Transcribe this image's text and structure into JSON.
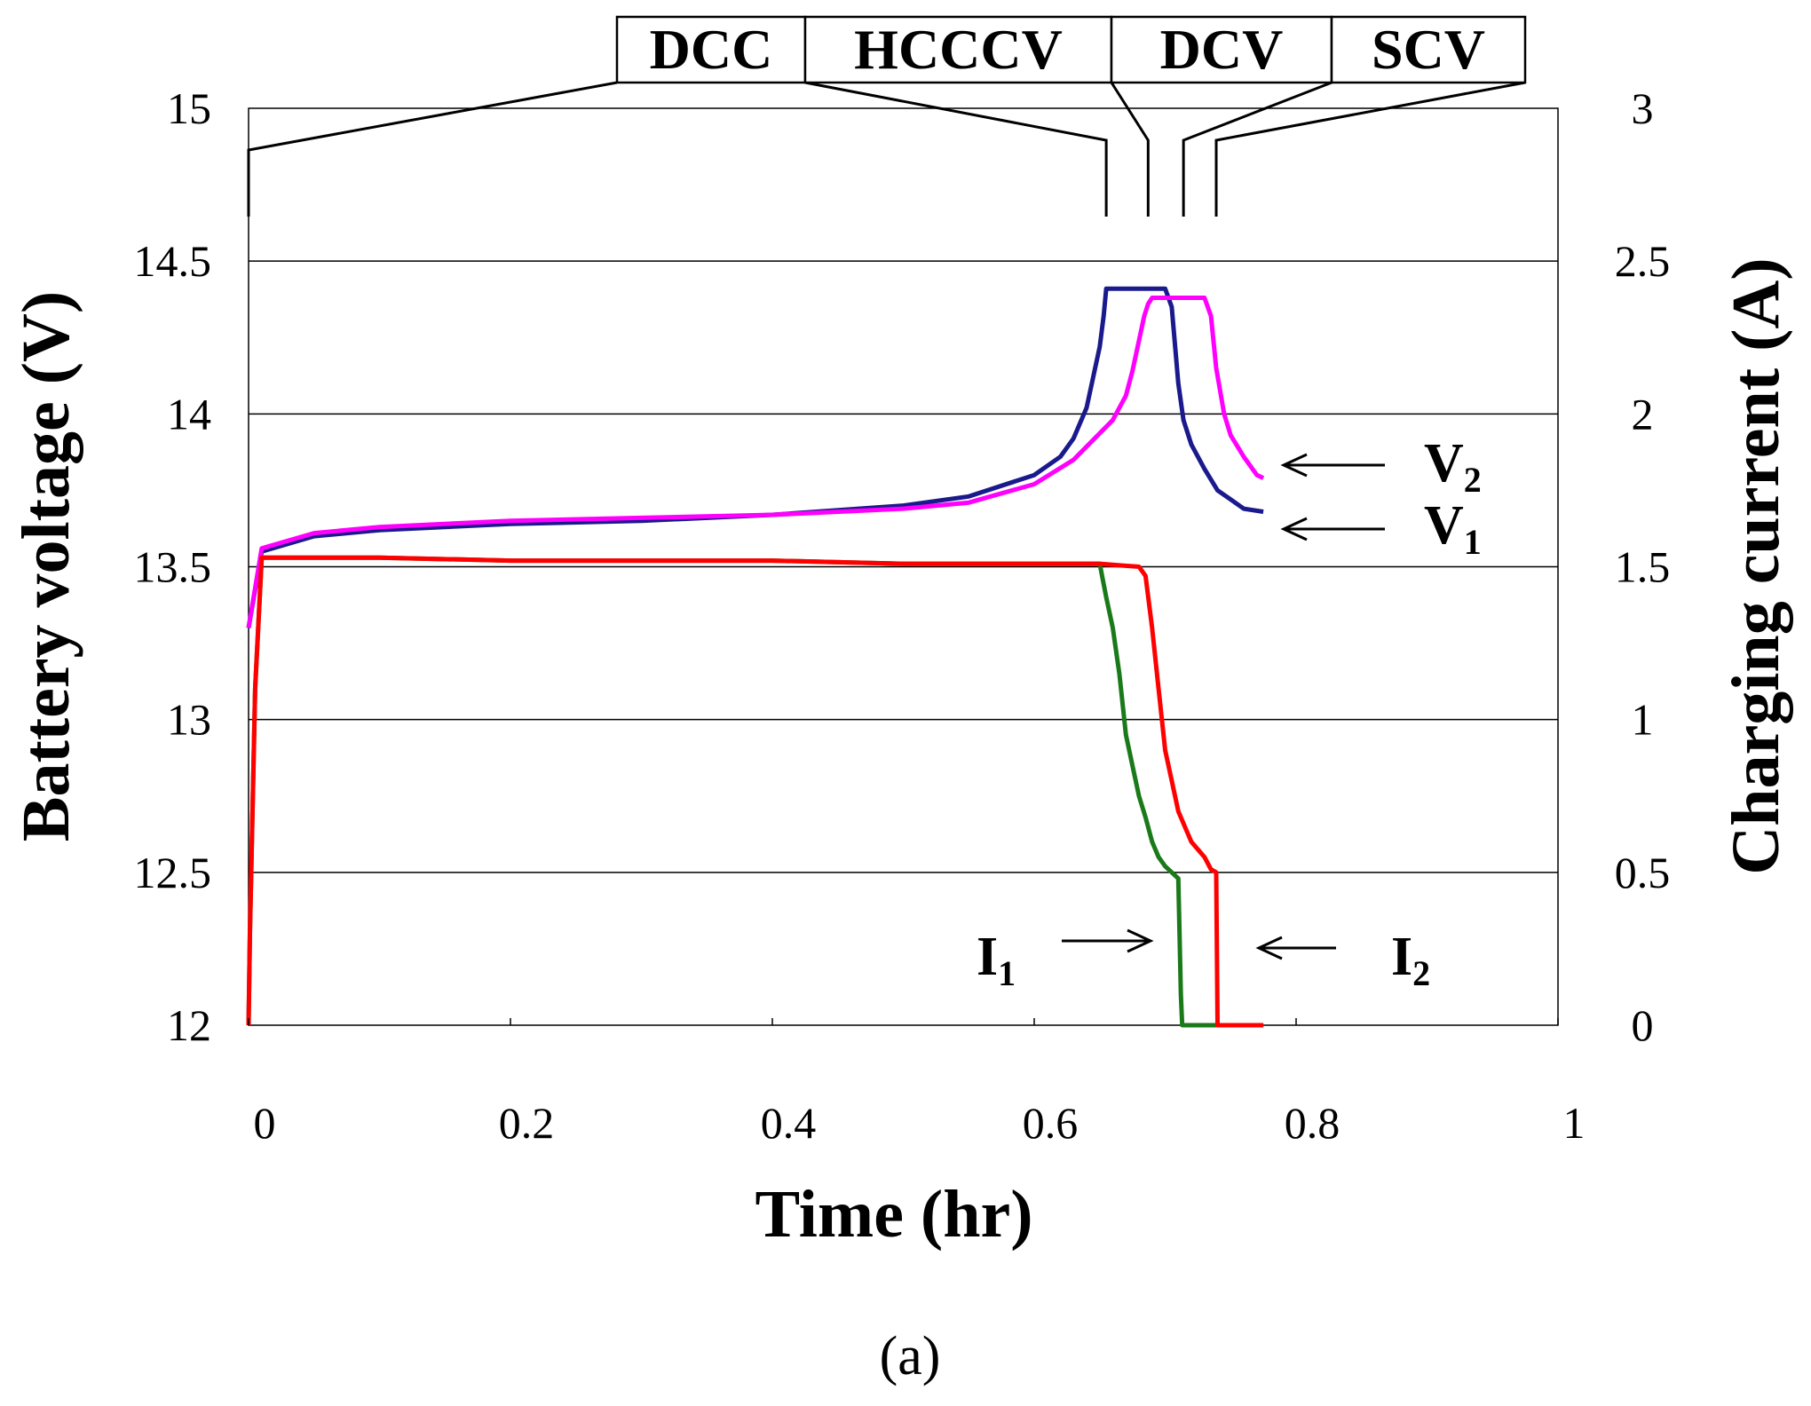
{
  "chart_data": {
    "type": "line",
    "caption": "(a)",
    "xlabel": "Time (hr)",
    "ylabel_left": "Battery voltage (V)",
    "ylabel_right": "Charging current (A)",
    "xlim": [
      0,
      1
    ],
    "ylim_left": [
      12,
      15
    ],
    "ylim_right": [
      0,
      3
    ],
    "x_ticks": [
      "0",
      "0.2",
      "0.4",
      "0.6",
      "0.8",
      "1"
    ],
    "y_ticks_left": [
      "12",
      "12.5",
      "13",
      "13.5",
      "14",
      "14.5",
      "15"
    ],
    "y_ticks_right": [
      "0",
      "0.5",
      "1",
      "1.5",
      "2",
      "2.5",
      "3"
    ],
    "grid": "horizontal",
    "phases": [
      "DCC",
      "HCCCV",
      "DCV",
      "SCV"
    ],
    "phase_boundaries_x": [
      0,
      0.655,
      0.687,
      0.714,
      0.739
    ],
    "series": [
      {
        "name": "V1",
        "label": "V",
        "sub": "1",
        "axis": "left",
        "color": "#1a1a8c",
        "x": [
          0,
          0.01,
          0.05,
          0.1,
          0.2,
          0.3,
          0.4,
          0.5,
          0.55,
          0.6,
          0.62,
          0.63,
          0.64,
          0.645,
          0.65,
          0.653,
          0.655,
          0.66,
          0.7,
          0.705,
          0.71,
          0.714,
          0.72,
          0.73,
          0.74,
          0.75,
          0.76,
          0.775
        ],
        "y": [
          13.3,
          13.55,
          13.6,
          13.62,
          13.64,
          13.65,
          13.67,
          13.7,
          13.73,
          13.8,
          13.86,
          13.92,
          14.02,
          14.12,
          14.22,
          14.32,
          14.41,
          14.41,
          14.41,
          14.35,
          14.1,
          13.98,
          13.9,
          13.82,
          13.75,
          13.72,
          13.69,
          13.68
        ]
      },
      {
        "name": "V2",
        "label": "V",
        "sub": "2",
        "axis": "left",
        "color": "#ff00ff",
        "x": [
          0,
          0.01,
          0.05,
          0.1,
          0.2,
          0.3,
          0.4,
          0.5,
          0.55,
          0.6,
          0.63,
          0.66,
          0.67,
          0.675,
          0.68,
          0.684,
          0.687,
          0.69,
          0.73,
          0.735,
          0.739,
          0.745,
          0.75,
          0.76,
          0.77,
          0.775
        ],
        "y": [
          13.3,
          13.56,
          13.61,
          13.63,
          13.65,
          13.66,
          13.67,
          13.69,
          13.71,
          13.77,
          13.85,
          13.98,
          14.06,
          14.14,
          14.24,
          14.32,
          14.36,
          14.38,
          14.38,
          14.32,
          14.15,
          14.0,
          13.93,
          13.86,
          13.8,
          13.79
        ]
      },
      {
        "name": "I1",
        "label": "I",
        "sub": "1",
        "axis": "right",
        "color": "#1a7a1a",
        "x": [
          0,
          0.001,
          0.005,
          0.01,
          0.1,
          0.2,
          0.3,
          0.4,
          0.5,
          0.6,
          0.65,
          0.655,
          0.66,
          0.665,
          0.67,
          0.675,
          0.68,
          0.685,
          0.69,
          0.695,
          0.7,
          0.705,
          0.71,
          0.712,
          0.713,
          0.74,
          0.775
        ],
        "y": [
          0,
          0.3,
          1.1,
          1.53,
          1.53,
          1.52,
          1.52,
          1.52,
          1.51,
          1.51,
          1.51,
          1.4,
          1.3,
          1.15,
          0.95,
          0.85,
          0.75,
          0.68,
          0.6,
          0.55,
          0.52,
          0.5,
          0.48,
          0.1,
          0,
          0,
          0
        ]
      },
      {
        "name": "I2",
        "label": "I",
        "sub": "2",
        "axis": "right",
        "color": "#ff0000",
        "x": [
          0,
          0.001,
          0.005,
          0.01,
          0.1,
          0.2,
          0.3,
          0.4,
          0.5,
          0.6,
          0.65,
          0.68,
          0.685,
          0.69,
          0.695,
          0.7,
          0.705,
          0.71,
          0.715,
          0.72,
          0.73,
          0.735,
          0.739,
          0.74,
          0.775
        ],
        "y": [
          0,
          0.3,
          1.1,
          1.53,
          1.53,
          1.52,
          1.52,
          1.52,
          1.51,
          1.51,
          1.51,
          1.5,
          1.47,
          1.3,
          1.1,
          0.9,
          0.8,
          0.7,
          0.65,
          0.6,
          0.55,
          0.51,
          0.5,
          0,
          0
        ]
      }
    ]
  }
}
